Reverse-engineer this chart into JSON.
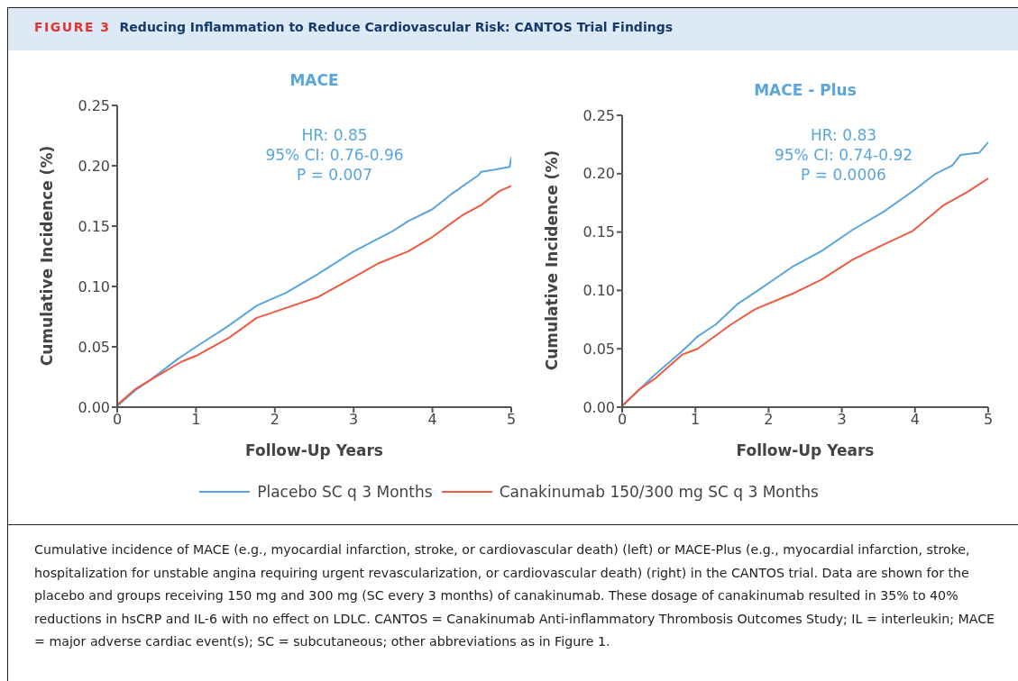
{
  "chart_data": [
    {
      "type": "line",
      "title": "MACE",
      "xlabel": "Follow-Up Years",
      "ylabel": "Cumulative Incidence (%)",
      "annotations": [
        "FIGURE 3",
        "Reducing Inflammation to Reduce Cardiovascular Risk: CANTOS Trial Findings",
        "HR: 0.85",
        "95% CI: 0.76-0.96",
        "P = 0.007",
        "Cumulative incidence of MACE (e.g., myocardial infarction, stroke, or cardiovascular death) (left) or MACE-Plus (e.g., myocardial infarction, stroke, hospitalization for unstable angina requiring urgent revascularization, or cardiovascular death) (right) in the CANTOS trial. Data are shown for the placebo and groups receiving 150 mg and 300 mg (SC every 3 months) of canakinumab. These dosage of canakinumab resulted in 35% to 40% reductions in hsCRP and IL-6 with no effect on LDLC. CANTOS = Canakinumab Anti-inflammatory Thrombosis Outcomes Study; IL = interleukin; MACE = major adverse cardiac event(s); SC = subcutaneous; other abbreviations as in Figure 1."
      ],
      "xlim": [
        0,
        5
      ],
      "xticks": [
        0,
        1,
        2,
        3,
        4,
        5
      ],
      "ylim": [
        0,
        0.25
      ],
      "yticks": [
        {
          "value": 0,
          "label": "0.00"
        },
        {
          "value": 0.05,
          "label": "0.05"
        },
        {
          "value": 0.1,
          "label": "0.10"
        },
        {
          "value": 0.15,
          "label": "0.15"
        },
        {
          "value": 0.2,
          "label": "0.20"
        },
        {
          "value": 0.25,
          "label": "0.25"
        }
      ],
      "grid": false,
      "legend": "bottom",
      "marker": "none",
      "line_style": "solid",
      "series": [
        {
          "name": "Placebo SC q 3 Months",
          "color": "#5aa5dc",
          "x": [
            0,
            0.23,
            0.42,
            0.77,
            1.0,
            1.38,
            1.77,
            2.15,
            2.54,
            3.0,
            3.5,
            3.69,
            4.0,
            4.23,
            4.58,
            4.62,
            4.81,
            4.98,
            5.0
          ],
          "values": [
            0.001,
            0.014,
            0.0225,
            0.04,
            0.05,
            0.066,
            0.084,
            0.095,
            0.11,
            0.129,
            0.146,
            0.154,
            0.164,
            0.176,
            0.192,
            0.195,
            0.197,
            0.199,
            0.207
          ]
        },
        {
          "name": "Canakinumab 150/300 mg SC q 3 Months",
          "color": "#ee5a40",
          "x": [
            0,
            0.23,
            0.42,
            0.81,
            1.0,
            1.42,
            1.77,
            2.0,
            2.54,
            3.0,
            3.31,
            3.69,
            4.0,
            4.38,
            4.62,
            4.85,
            5.0
          ],
          "values": [
            0.002,
            0.015,
            0.0225,
            0.0375,
            0.0425,
            0.0575,
            0.074,
            0.079,
            0.091,
            0.1075,
            0.119,
            0.129,
            0.141,
            0.159,
            0.1675,
            0.179,
            0.1833
          ]
        }
      ]
    },
    {
      "type": "line",
      "title": "MACE - Plus",
      "xlabel": "Follow-Up Years",
      "ylabel": "Cumulative Incidence (%)",
      "annotations": [
        "HR: 0.83",
        "95% CI: 0.74-0.92",
        "P = 0.0006"
      ],
      "xlim": [
        0,
        5
      ],
      "xticks": [
        0,
        1,
        2,
        3,
        4,
        5
      ],
      "ylim": [
        0,
        0.25
      ],
      "yticks": [
        {
          "value": 0,
          "label": "0.00"
        },
        {
          "value": 0.05,
          "label": "0.05"
        },
        {
          "value": 0.1,
          "label": "0.10"
        },
        {
          "value": 0.15,
          "label": "0.15"
        },
        {
          "value": 0.2,
          "label": "0.20"
        },
        {
          "value": 0.25,
          "label": "0.25"
        }
      ],
      "grid": false,
      "marker": "none",
      "line_style": "solid",
      "series": [
        {
          "color": "#5aa5dc",
          "x": [
            0,
            0.24,
            0.45,
            0.82,
            1.03,
            1.28,
            1.57,
            1.9,
            2.32,
            2.73,
            3.15,
            3.56,
            3.97,
            4.27,
            4.51,
            4.62,
            4.88,
            5.0
          ],
          "values": [
            0.001,
            0.0155,
            0.028,
            0.048,
            0.0605,
            0.071,
            0.088,
            0.102,
            0.12,
            0.134,
            0.152,
            0.167,
            0.185,
            0.1995,
            0.207,
            0.216,
            0.218,
            0.227
          ]
        },
        {
          "color": "#ee5a40",
          "x": [
            0,
            0.24,
            0.45,
            0.82,
            1.03,
            1.49,
            1.82,
            2.32,
            2.73,
            3.15,
            3.56,
            3.97,
            4.39,
            4.72,
            5.0
          ],
          "values": [
            0.001,
            0.0155,
            0.0245,
            0.045,
            0.05,
            0.071,
            0.084,
            0.097,
            0.1095,
            0.1265,
            0.139,
            0.151,
            0.173,
            0.1845,
            0.196
          ]
        }
      ]
    }
  ]
}
